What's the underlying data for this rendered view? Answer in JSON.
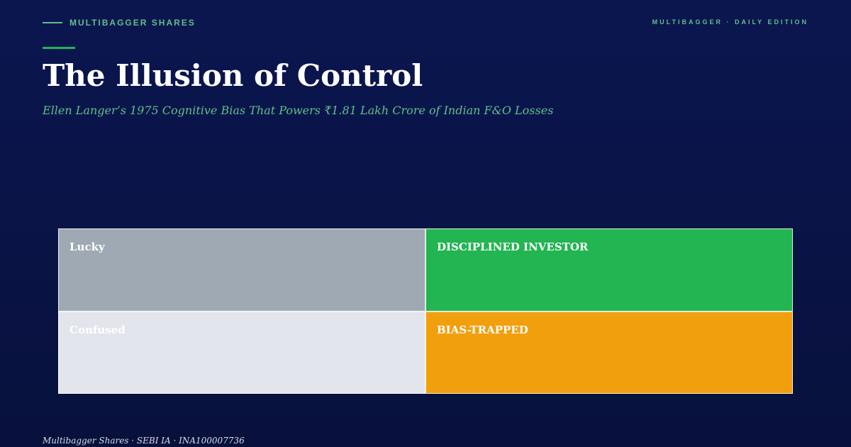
{
  "header": {
    "brand": "MULTIBAGGER SHARES",
    "edition": "MULTIBAGGER · DAILY EDITION",
    "title": "The Illusion of Control",
    "subtitle": "Ellen Langer’s 1975 Cognitive Bias That Powers ₹1.81 Lakh Crore of Indian F&O Losses"
  },
  "matrix": {
    "cells": [
      {
        "label": "Lucky",
        "color": "#9fa9b3"
      },
      {
        "label": "DISCIPLINED INVESTOR",
        "color": "#22b551"
      },
      {
        "label": "Confused",
        "color": "#e2e5eb"
      },
      {
        "label": "BIAS-TRAPPED",
        "color": "#f29f0d"
      }
    ]
  },
  "footer": "Multibagger Shares · SEBI IA · INA100007736"
}
